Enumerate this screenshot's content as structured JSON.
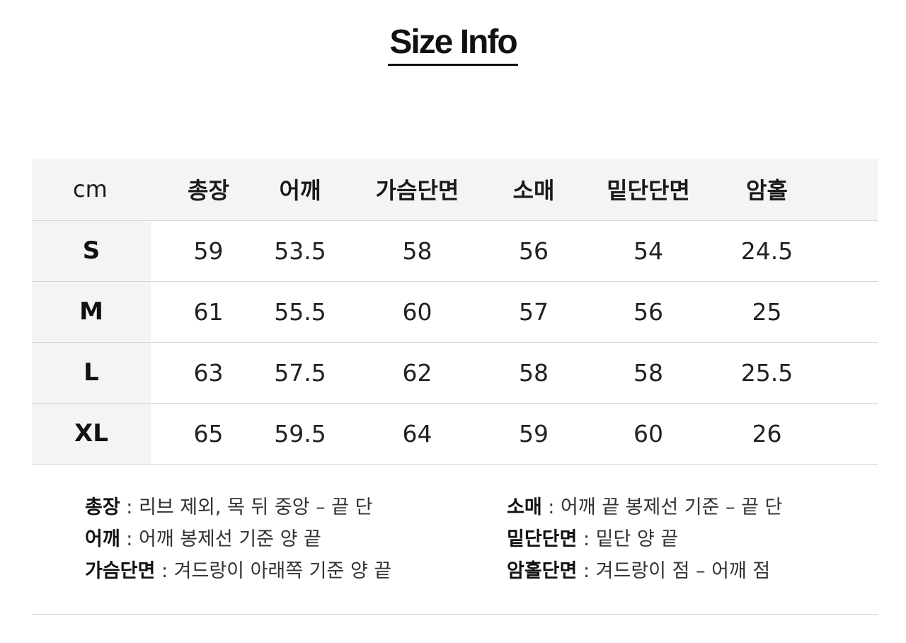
{
  "title": "Size Info",
  "table": {
    "unit": "cm",
    "columns": [
      "총장",
      "어깨",
      "가슴단면",
      "소매",
      "밑단단면",
      "암홀"
    ],
    "rows": [
      {
        "size": "S",
        "values": [
          "59",
          "53.5",
          "58",
          "56",
          "54",
          "24.5"
        ]
      },
      {
        "size": "M",
        "values": [
          "61",
          "55.5",
          "60",
          "57",
          "56",
          "25"
        ]
      },
      {
        "size": "L",
        "values": [
          "63",
          "57.5",
          "62",
          "58",
          "58",
          "25.5"
        ]
      },
      {
        "size": "XL",
        "values": [
          "65",
          "59.5",
          "64",
          "59",
          "60",
          "26"
        ]
      }
    ]
  },
  "notes": {
    "left": [
      {
        "term": "총장",
        "desc": " : 리브 제외, 목 뒤 중앙 – 끝 단"
      },
      {
        "term": "어깨",
        "desc": " : 어깨 봉제선 기준 양 끝"
      },
      {
        "term": "가슴단면",
        "desc": " : 겨드랑이 아래쪽 기준 양 끝"
      }
    ],
    "right": [
      {
        "term": "소매",
        "desc": " : 어깨 끝 봉제선 기준 – 끝 단"
      },
      {
        "term": "밑단단면",
        "desc": " : 밑단 양 끝"
      },
      {
        "term": "암홀단면",
        "desc": " : 겨드랑이 점 – 어깨 점"
      }
    ]
  }
}
